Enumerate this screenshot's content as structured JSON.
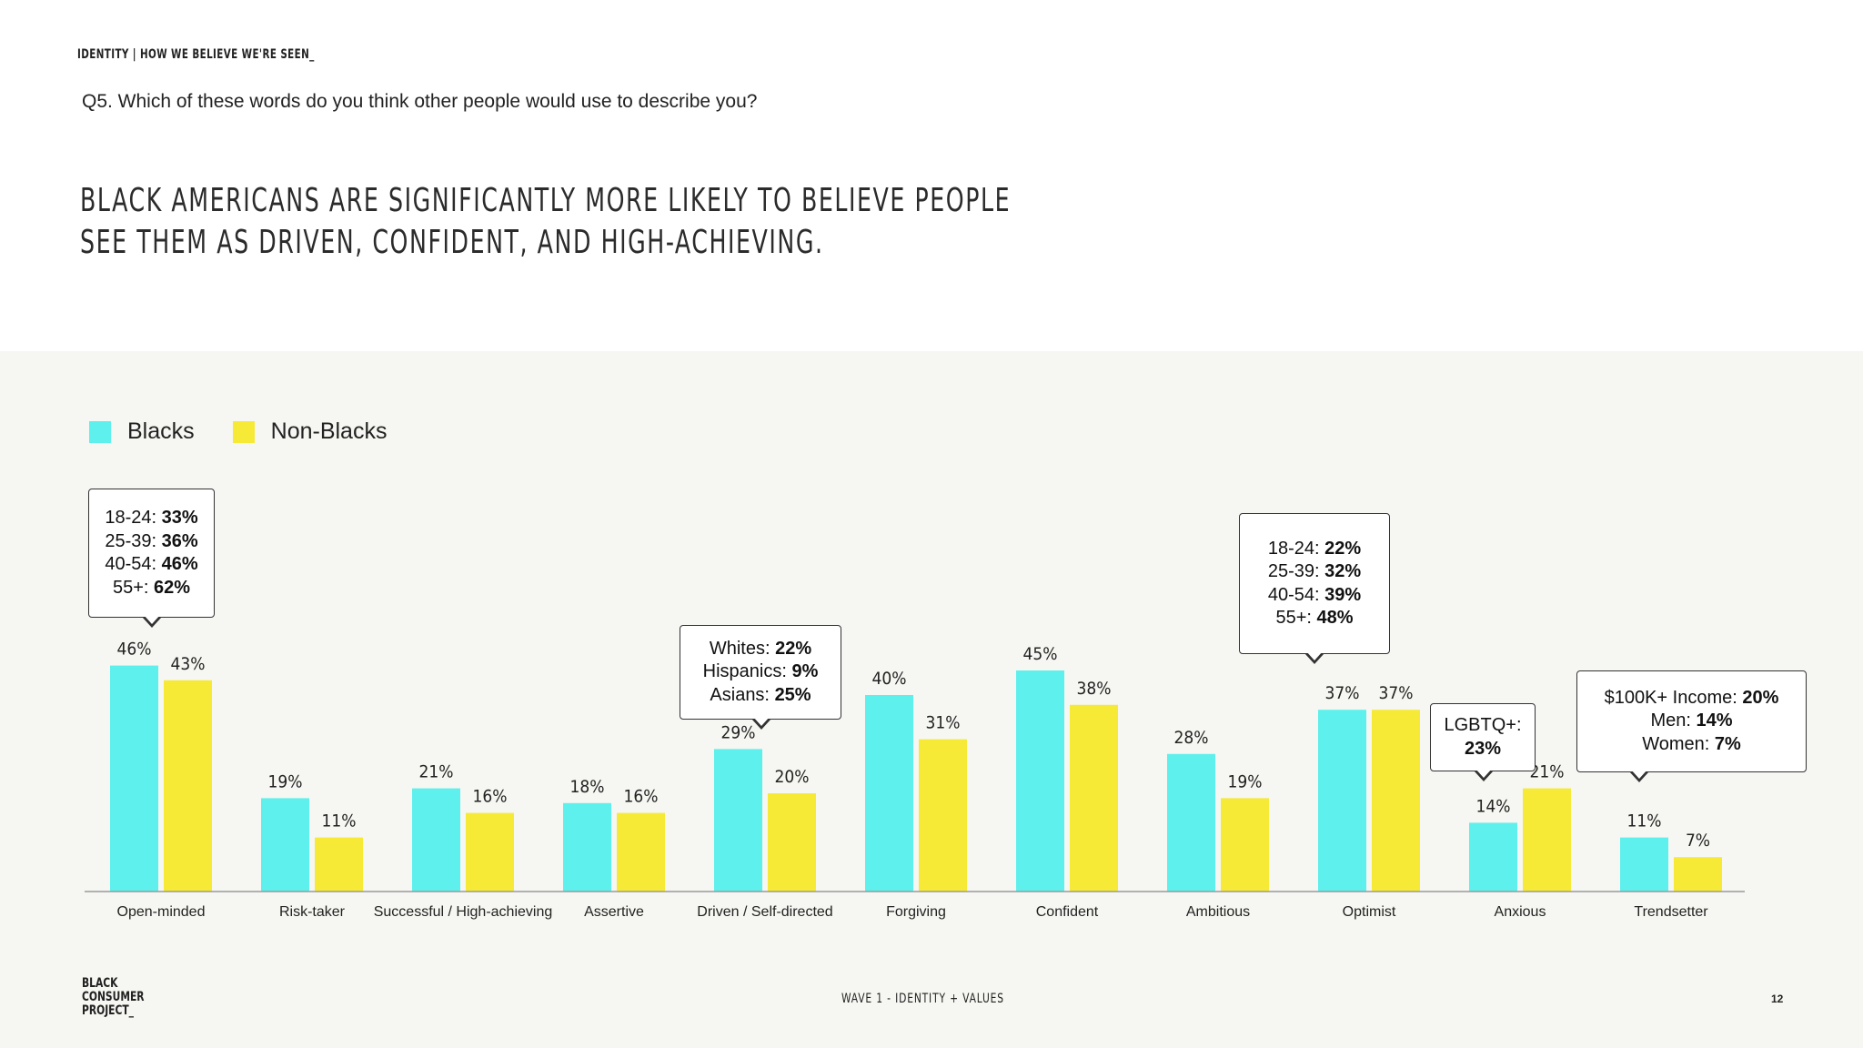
{
  "header": {
    "kicker": "IDENTITY | HOW WE BELIEVE WE'RE SEEN_",
    "question": "Q5. Which of these words do you think other people would use to describe you?",
    "headline_line1": "BLACK AMERICANS ARE SIGNIFICANTLY MORE LIKELY TO BELIEVE PEOPLE",
    "headline_line2": "SEE THEM AS DRIVEN, CONFIDENT, AND HIGH-ACHIEVING."
  },
  "legend": [
    {
      "label": "Blacks",
      "color": "#5ef0ec"
    },
    {
      "label": "Non-Blacks",
      "color": "#f7ea37"
    }
  ],
  "chart_data": {
    "type": "bar",
    "categories": [
      "Open-minded",
      "Risk-taker",
      "Successful / High-achieving",
      "Assertive",
      "Driven / Self-directed",
      "Forgiving",
      "Confident",
      "Ambitious",
      "Optimist",
      "Anxious",
      "Trendsetter"
    ],
    "series": [
      {
        "name": "Blacks",
        "color": "#5ef0ec",
        "values": [
          46,
          19,
          21,
          18,
          29,
          40,
          45,
          28,
          37,
          14,
          11
        ]
      },
      {
        "name": "Non-Blacks",
        "color": "#f7ea37",
        "values": [
          43,
          11,
          16,
          16,
          20,
          31,
          38,
          19,
          37,
          21,
          7
        ]
      }
    ],
    "value_suffix": "%",
    "ylim": [
      0,
      50
    ],
    "grid": false
  },
  "callouts": [
    {
      "id": "open-minded",
      "lines": [
        {
          "label": "18-24: ",
          "value": "33%"
        },
        {
          "label": "25-39: ",
          "value": "36%"
        },
        {
          "label": "40-54: ",
          "value": "46%"
        },
        {
          "label": "55+: ",
          "value": "62%"
        }
      ]
    },
    {
      "id": "driven",
      "lines": [
        {
          "label": "Whites: ",
          "value": "22%"
        },
        {
          "label": "Hispanics: ",
          "value": "9%"
        },
        {
          "label": "Asians: ",
          "value": "25%"
        }
      ]
    },
    {
      "id": "optimist",
      "lines": [
        {
          "label": "18-24: ",
          "value": "22%"
        },
        {
          "label": "25-39: ",
          "value": "32%"
        },
        {
          "label": "40-54: ",
          "value": "39%"
        },
        {
          "label": "55+: ",
          "value": "48%"
        }
      ]
    },
    {
      "id": "anxious",
      "lines": [
        {
          "label": "LGBTQ+:",
          "value": ""
        },
        {
          "label": "",
          "value": "23%"
        }
      ]
    },
    {
      "id": "trendsetter",
      "lines": [
        {
          "label": "$100K+ Income: ",
          "value": "20%"
        },
        {
          "label": "Men: ",
          "value": "14%"
        },
        {
          "label": "Women: ",
          "value": "7%"
        }
      ]
    }
  ],
  "footer": {
    "logo_line1": "BLACK",
    "logo_line2": "CONSUMER",
    "logo_line3": "PROJECT_",
    "center": "WAVE 1 - IDENTITY + VALUES",
    "page": "12"
  }
}
